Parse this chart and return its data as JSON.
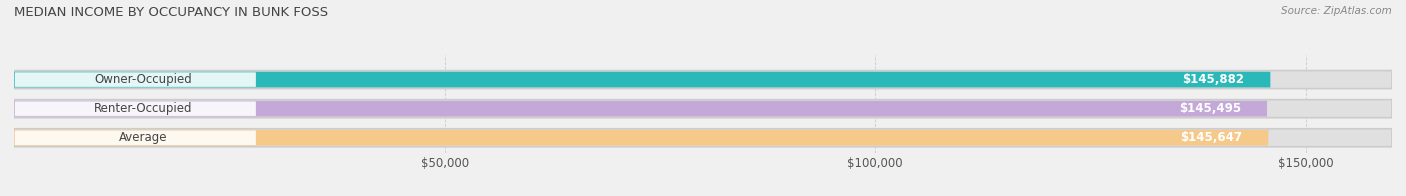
{
  "title": "MEDIAN INCOME BY OCCUPANCY IN BUNK FOSS",
  "source": "Source: ZipAtlas.com",
  "categories": [
    "Owner-Occupied",
    "Renter-Occupied",
    "Average"
  ],
  "values": [
    145882,
    145495,
    145647
  ],
  "value_labels": [
    "$145,882",
    "$145,495",
    "$145,647"
  ],
  "bar_colors": [
    "#2ab8b8",
    "#c4a8d8",
    "#f5c98a"
  ],
  "bg_color": "#f0f0f0",
  "bar_bg_color": "#e0e0e0",
  "xlim": [
    0,
    160000
  ],
  "max_val": 160000,
  "xticks": [
    0,
    50000,
    100000,
    150000
  ],
  "xtick_labels": [
    "",
    "$50,000",
    "$100,000",
    "$150,000"
  ],
  "figsize": [
    14.06,
    1.96
  ],
  "dpi": 100,
  "title_fontsize": 9.5,
  "label_fontsize": 8.5,
  "value_fontsize": 8.5,
  "source_fontsize": 7.5
}
